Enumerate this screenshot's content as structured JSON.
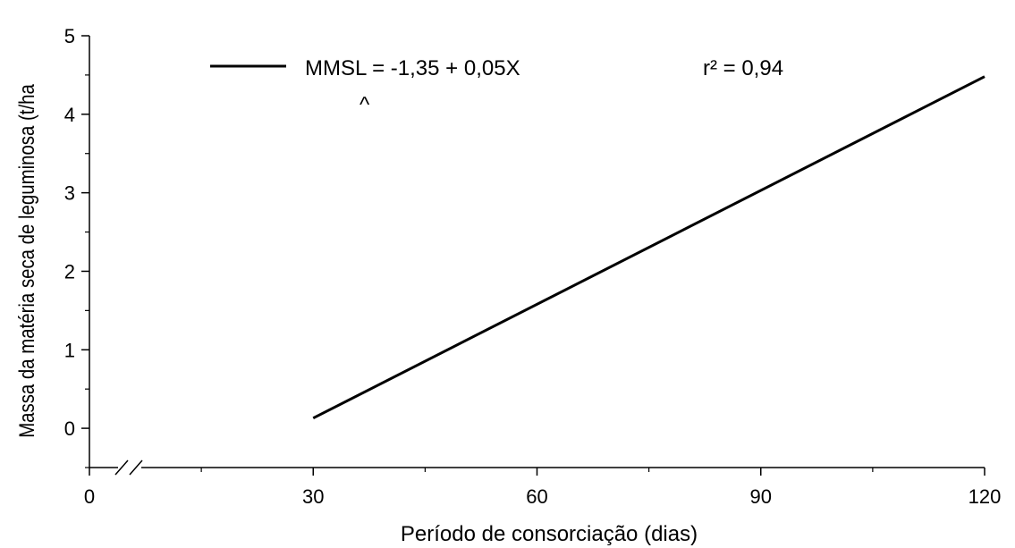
{
  "chart_data": {
    "type": "line",
    "xlabel": "Período de consorciação (dias)",
    "ylabel": "Massa da matéria seca de leguminosa (t/ha",
    "x_ticks": [
      "0",
      "30",
      "60",
      "90",
      "120"
    ],
    "y_ticks": [
      "0",
      "1",
      "2",
      "3",
      "4",
      "5"
    ],
    "xlim": [
      0,
      120
    ],
    "ylim": [
      -0.5,
      5
    ],
    "x_axis_break": true,
    "grid": false,
    "legend_position": "top",
    "series": [
      {
        "color": "#000000",
        "x": [
          30,
          120
        ],
        "y": [
          0.13,
          4.48
        ]
      }
    ],
    "legend": {
      "equation": "MMSL = -1,35 + 0,05X",
      "hat": "^",
      "r2": "r² = 0,94"
    }
  }
}
